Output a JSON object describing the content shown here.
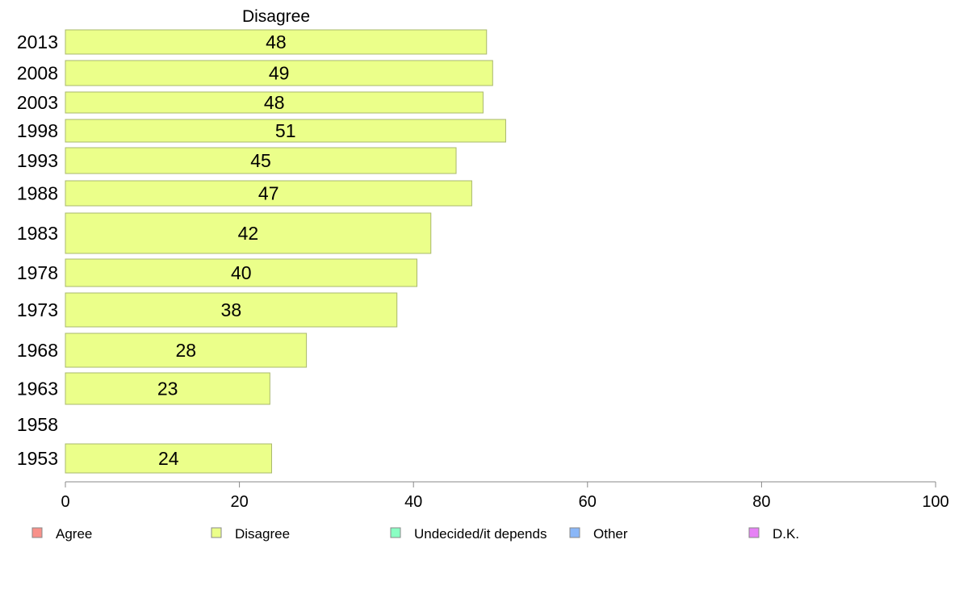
{
  "chart_data": {
    "type": "bar",
    "orientation": "horizontal",
    "title": "Disagree",
    "categories": [
      "2013",
      "2008",
      "2003",
      "1998",
      "1993",
      "1988",
      "1983",
      "1978",
      "1973",
      "1968",
      "1963",
      "1958",
      "1953"
    ],
    "series": [
      {
        "name": "Disagree",
        "values": [
          48.4,
          49.1,
          48.0,
          50.6,
          44.9,
          46.7,
          42.0,
          40.4,
          38.1,
          27.7,
          23.5,
          null,
          23.7
        ],
        "labels": [
          "48",
          "49",
          "48",
          "51",
          "45",
          "47",
          "42",
          "40",
          "38",
          "28",
          "23",
          "",
          "24"
        ]
      }
    ],
    "xlim": [
      0,
      100
    ],
    "xticks": [
      "0",
      "20",
      "40",
      "60",
      "80",
      "100"
    ],
    "grid": false,
    "legend": {
      "position": "bottom",
      "items": [
        {
          "label": "Agree",
          "color": "#f8918a"
        },
        {
          "label": "Disagree",
          "color": "#ebff8a"
        },
        {
          "label": "Undecided/it depends",
          "color": "#8affc3"
        },
        {
          "label": "Other",
          "color": "#8ab7f8"
        },
        {
          "label": "D.K.",
          "color": "#e681f5"
        }
      ]
    },
    "colors": {
      "bar_fill": "#ebff8a",
      "bar_stroke": "#a9b86d",
      "axis": "#888888"
    }
  }
}
